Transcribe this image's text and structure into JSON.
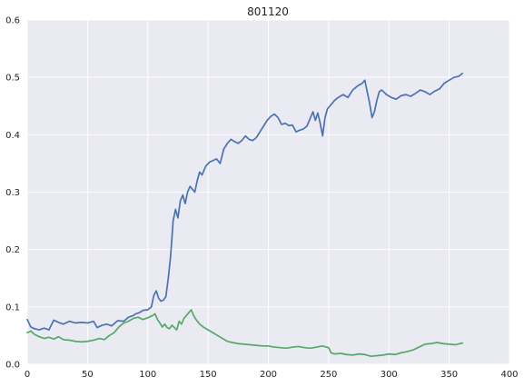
{
  "chart_data": {
    "type": "line",
    "title": "801120",
    "xlabel": "",
    "ylabel": "",
    "xlim": [
      0,
      400
    ],
    "ylim": [
      0,
      0.6
    ],
    "xticks": [
      0,
      50,
      100,
      150,
      200,
      250,
      300,
      350,
      400
    ],
    "yticks": [
      0.0,
      0.1,
      0.2,
      0.3,
      0.4,
      0.5,
      0.6
    ],
    "xtick_labels": [
      "0",
      "50",
      "100",
      "150",
      "200",
      "250",
      "300",
      "350",
      "400"
    ],
    "ytick_labels": [
      "0.0",
      "0.1",
      "0.2",
      "0.3",
      "0.4",
      "0.5",
      "0.6"
    ],
    "grid": true,
    "background": "#eaeaf2",
    "grid_color": "#ffffff",
    "series": [
      {
        "color": "#4c72b0",
        "x": [
          0,
          3,
          6,
          10,
          14,
          18,
          22,
          26,
          30,
          35,
          40,
          45,
          50,
          55,
          58,
          62,
          66,
          70,
          75,
          80,
          84,
          88,
          90,
          93,
          96,
          100,
          103,
          105,
          107,
          109,
          111,
          113,
          115,
          117,
          119,
          121,
          123,
          125,
          127,
          129,
          131,
          133,
          135,
          137,
          139,
          141,
          143,
          145,
          148,
          151,
          154,
          157,
          160,
          163,
          166,
          169,
          172,
          175,
          178,
          181,
          184,
          187,
          190,
          193,
          196,
          199,
          202,
          205,
          208,
          211,
          214,
          217,
          220,
          223,
          226,
          229,
          232,
          235,
          237,
          239,
          241,
          243,
          245,
          247,
          249,
          251,
          253,
          255,
          258,
          262,
          266,
          270,
          274,
          278,
          280,
          282,
          284,
          286,
          288,
          290,
          292,
          294,
          298,
          302,
          306,
          310,
          314,
          318,
          322,
          326,
          330,
          334,
          338,
          342,
          346,
          350,
          354,
          358,
          361
        ],
        "y": [
          0.078,
          0.065,
          0.062,
          0.06,
          0.063,
          0.06,
          0.077,
          0.073,
          0.07,
          0.075,
          0.072,
          0.073,
          0.072,
          0.075,
          0.064,
          0.068,
          0.07,
          0.067,
          0.076,
          0.075,
          0.082,
          0.085,
          0.088,
          0.09,
          0.094,
          0.095,
          0.1,
          0.12,
          0.128,
          0.115,
          0.11,
          0.112,
          0.118,
          0.15,
          0.19,
          0.25,
          0.27,
          0.255,
          0.285,
          0.295,
          0.28,
          0.3,
          0.31,
          0.305,
          0.3,
          0.32,
          0.335,
          0.33,
          0.345,
          0.352,
          0.355,
          0.358,
          0.35,
          0.375,
          0.385,
          0.392,
          0.388,
          0.385,
          0.39,
          0.398,
          0.392,
          0.39,
          0.395,
          0.405,
          0.415,
          0.425,
          0.432,
          0.436,
          0.43,
          0.418,
          0.42,
          0.416,
          0.417,
          0.405,
          0.408,
          0.41,
          0.415,
          0.43,
          0.44,
          0.425,
          0.438,
          0.42,
          0.398,
          0.43,
          0.445,
          0.45,
          0.455,
          0.46,
          0.465,
          0.47,
          0.465,
          0.478,
          0.485,
          0.49,
          0.495,
          0.475,
          0.455,
          0.43,
          0.44,
          0.46,
          0.475,
          0.478,
          0.47,
          0.465,
          0.462,
          0.468,
          0.47,
          0.467,
          0.472,
          0.478,
          0.475,
          0.47,
          0.476,
          0.48,
          0.49,
          0.495,
          0.5,
          0.502,
          0.507
        ]
      },
      {
        "color": "#55a868",
        "x": [
          0,
          3,
          6,
          10,
          14,
          18,
          22,
          26,
          30,
          35,
          40,
          45,
          50,
          55,
          60,
          64,
          68,
          72,
          76,
          80,
          84,
          88,
          92,
          96,
          100,
          104,
          106,
          108,
          110,
          112,
          114,
          116,
          118,
          120,
          122,
          124,
          126,
          128,
          130,
          132,
          134,
          136,
          138,
          140,
          143,
          146,
          150,
          154,
          158,
          162,
          166,
          170,
          175,
          180,
          185,
          190,
          195,
          200,
          205,
          210,
          215,
          220,
          225,
          230,
          235,
          240,
          245,
          248,
          250,
          252,
          255,
          260,
          265,
          270,
          275,
          280,
          285,
          290,
          295,
          300,
          305,
          310,
          315,
          320,
          325,
          330,
          335,
          340,
          345,
          350,
          355,
          361
        ],
        "y": [
          0.055,
          0.058,
          0.052,
          0.048,
          0.045,
          0.047,
          0.044,
          0.048,
          0.043,
          0.042,
          0.04,
          0.039,
          0.04,
          0.042,
          0.045,
          0.043,
          0.05,
          0.055,
          0.065,
          0.072,
          0.075,
          0.08,
          0.082,
          0.078,
          0.081,
          0.085,
          0.088,
          0.078,
          0.072,
          0.065,
          0.07,
          0.064,
          0.062,
          0.068,
          0.064,
          0.06,
          0.075,
          0.07,
          0.08,
          0.085,
          0.09,
          0.095,
          0.085,
          0.078,
          0.07,
          0.065,
          0.06,
          0.055,
          0.05,
          0.045,
          0.04,
          0.038,
          0.036,
          0.035,
          0.034,
          0.033,
          0.032,
          0.032,
          0.03,
          0.029,
          0.028,
          0.03,
          0.031,
          0.029,
          0.028,
          0.03,
          0.032,
          0.03,
          0.029,
          0.02,
          0.018,
          0.019,
          0.017,
          0.016,
          0.018,
          0.017,
          0.014,
          0.015,
          0.016,
          0.018,
          0.017,
          0.02,
          0.022,
          0.025,
          0.03,
          0.035,
          0.036,
          0.038,
          0.036,
          0.035,
          0.034,
          0.037
        ]
      }
    ]
  }
}
